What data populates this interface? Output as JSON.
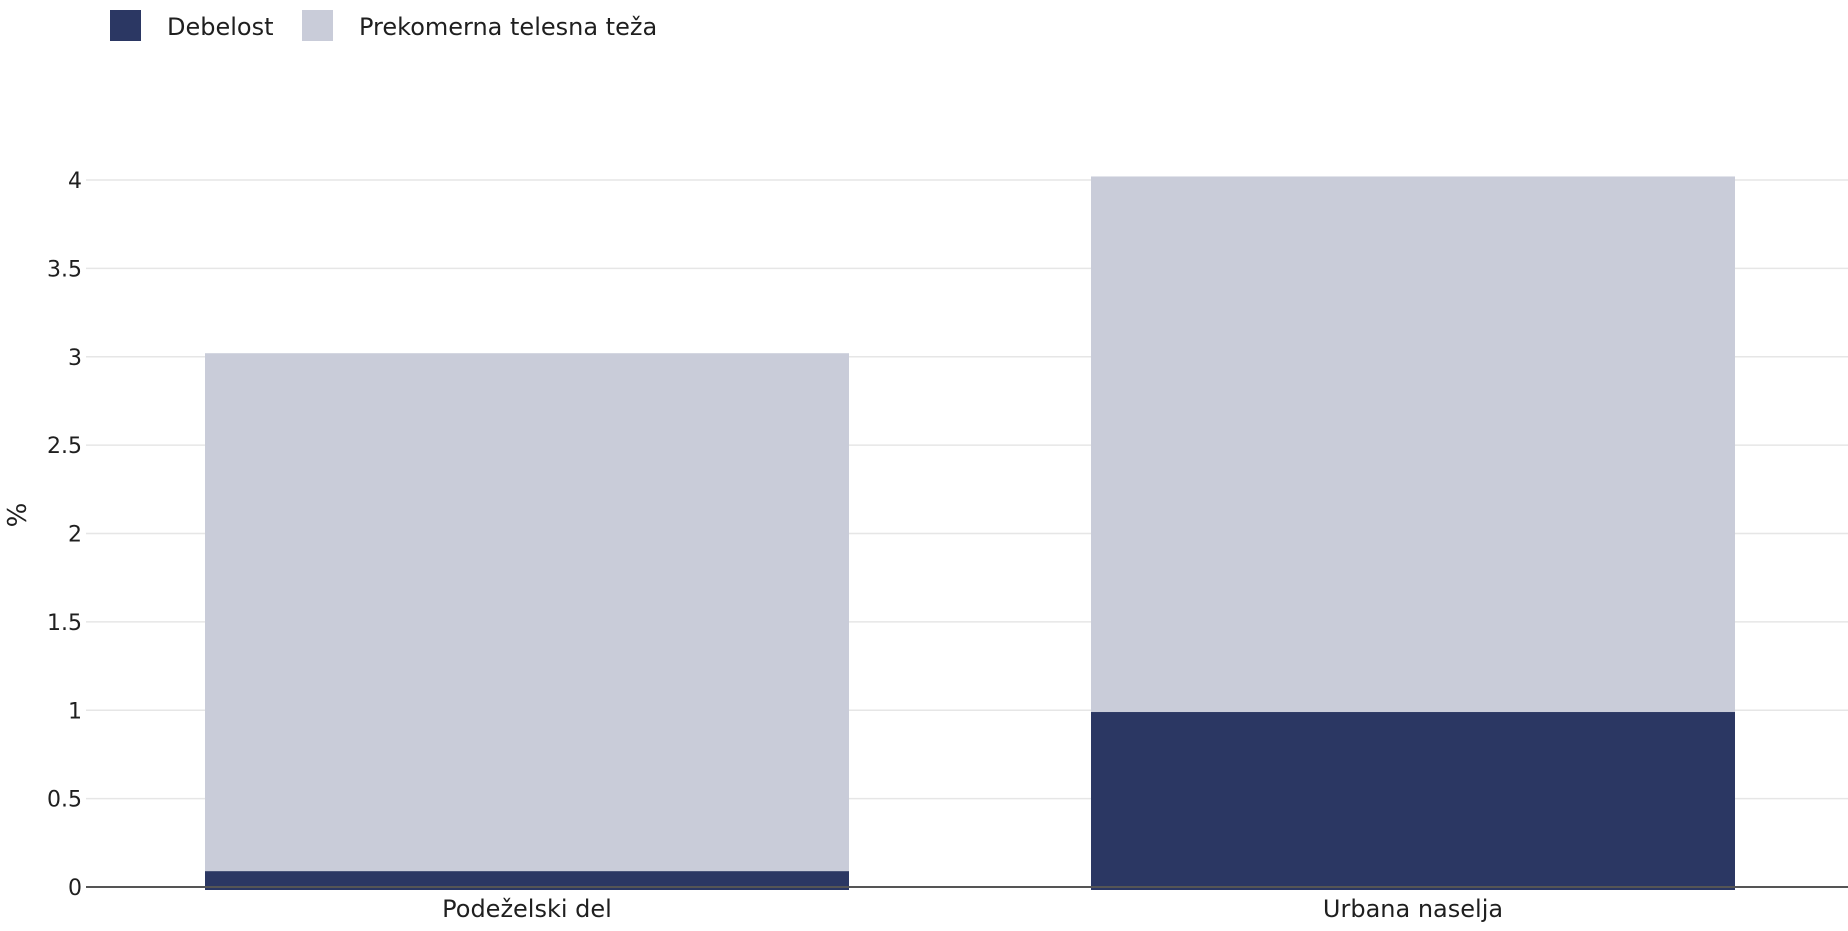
{
  "chart_data": {
    "type": "bar",
    "stacked": true,
    "categories": [
      "Podeželski del",
      "Urbana naselja"
    ],
    "series": [
      {
        "name": "Debelost",
        "color": "#2b3763",
        "values": [
          0.09,
          0.99
        ]
      },
      {
        "name": "Prekomerna telesna teža",
        "color": "#c9ccd9",
        "values": [
          2.93,
          3.03
        ]
      }
    ],
    "ylabel": "%",
    "xlabel": "",
    "ylim": [
      0,
      4
    ],
    "yticks": [
      0,
      0.5,
      1,
      1.5,
      2,
      2.5,
      3,
      3.5,
      4
    ],
    "ytick_labels": [
      "0",
      "0.5",
      "1",
      "1.5",
      "2",
      "2.5",
      "3",
      "3.5",
      "4"
    ],
    "grid": true,
    "legend_position": "top-left"
  }
}
